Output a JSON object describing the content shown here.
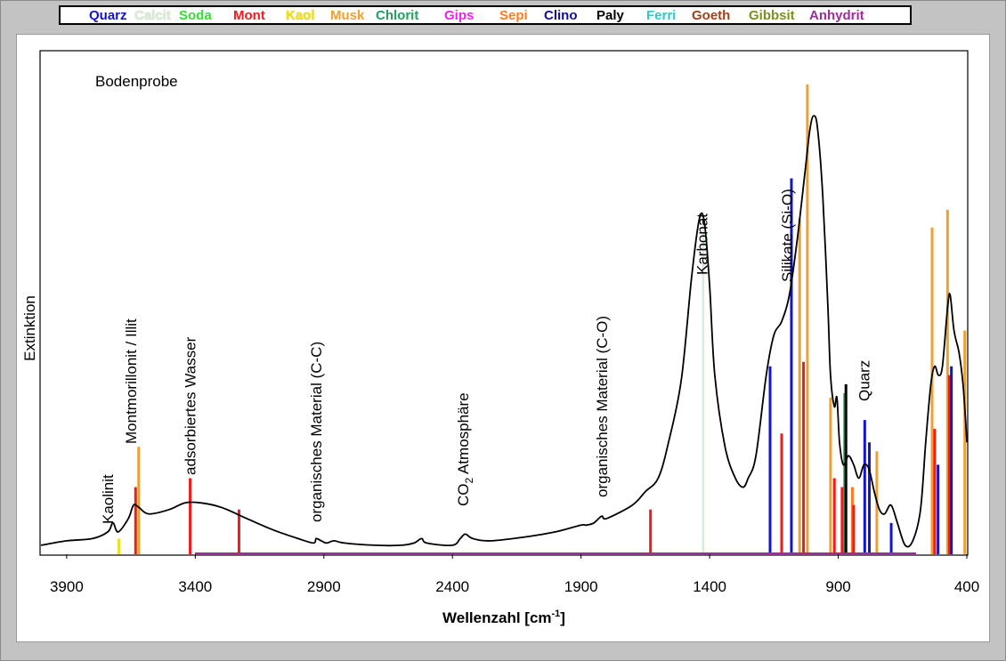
{
  "chart_data": {
    "type": "line",
    "title": "",
    "sample_label": "Bodenprobe",
    "xlabel": "Wellenzahl [cm",
    "xlabel_sup": "-1",
    "xlabel_end": "]",
    "ylabel": "Extinktion",
    "xlim": [
      4000,
      400
    ],
    "x_reversed": true,
    "x_ticks": [
      3900,
      3400,
      2900,
      2400,
      1900,
      1400,
      900,
      400
    ],
    "legend_position": "top",
    "legend": [
      {
        "name": "Quarz",
        "color": "#1515c8"
      },
      {
        "name": "Calcit",
        "color": "#d8ecd8"
      },
      {
        "name": "Soda",
        "color": "#33dd33"
      },
      {
        "name": "Mont",
        "color": "#ee1c1c"
      },
      {
        "name": "Kaol",
        "color": "#f0e020"
      },
      {
        "name": "Musk",
        "color": "#f0a030"
      },
      {
        "name": "Chlorit",
        "color": "#22a060"
      },
      {
        "name": "Gips",
        "color": "#ee22ee"
      },
      {
        "name": "Sepi",
        "color": "#ff7a20"
      },
      {
        "name": "Clino",
        "color": "#101090"
      },
      {
        "name": "Paly",
        "color": "#000000"
      },
      {
        "name": "Ferri",
        "color": "#30c8c8"
      },
      {
        "name": "Goeth",
        "color": "#a04018"
      },
      {
        "name": "Gibbsit",
        "color": "#80901c"
      },
      {
        "name": "Anhydrit",
        "color": "#a02c9c"
      }
    ],
    "spectrum": [
      [
        4000,
        0.02
      ],
      [
        3900,
        0.03
      ],
      [
        3800,
        0.035
      ],
      [
        3740,
        0.05
      ],
      [
        3720,
        0.07
      ],
      [
        3700,
        0.05
      ],
      [
        3660,
        0.08
      ],
      [
        3640,
        0.11
      ],
      [
        3620,
        0.105
      ],
      [
        3580,
        0.09
      ],
      [
        3500,
        0.1
      ],
      [
        3440,
        0.115
      ],
      [
        3380,
        0.115
      ],
      [
        3300,
        0.105
      ],
      [
        3200,
        0.08
      ],
      [
        3100,
        0.055
      ],
      [
        3000,
        0.035
      ],
      [
        2940,
        0.025
      ],
      [
        2930,
        0.035
      ],
      [
        2910,
        0.03
      ],
      [
        2890,
        0.025
      ],
      [
        2860,
        0.03
      ],
      [
        2820,
        0.025
      ],
      [
        2700,
        0.02
      ],
      [
        2600,
        0.02
      ],
      [
        2550,
        0.025
      ],
      [
        2520,
        0.035
      ],
      [
        2500,
        0.025
      ],
      [
        2400,
        0.02
      ],
      [
        2370,
        0.035
      ],
      [
        2350,
        0.045
      ],
      [
        2320,
        0.035
      ],
      [
        2250,
        0.03
      ],
      [
        2100,
        0.04
      ],
      [
        2000,
        0.05
      ],
      [
        1900,
        0.065
      ],
      [
        1880,
        0.065
      ],
      [
        1850,
        0.07
      ],
      [
        1820,
        0.085
      ],
      [
        1800,
        0.08
      ],
      [
        1700,
        0.11
      ],
      [
        1650,
        0.14
      ],
      [
        1600,
        0.17
      ],
      [
        1560,
        0.25
      ],
      [
        1510,
        0.39
      ],
      [
        1470,
        0.62
      ],
      [
        1440,
        0.75
      ],
      [
        1420,
        0.74
      ],
      [
        1400,
        0.6
      ],
      [
        1380,
        0.4
      ],
      [
        1340,
        0.24
      ],
      [
        1300,
        0.17
      ],
      [
        1270,
        0.15
      ],
      [
        1250,
        0.17
      ],
      [
        1220,
        0.22
      ],
      [
        1180,
        0.4
      ],
      [
        1150,
        0.49
      ],
      [
        1120,
        0.52
      ],
      [
        1090,
        0.58
      ],
      [
        1060,
        0.7
      ],
      [
        1030,
        0.85
      ],
      [
        1010,
        0.95
      ],
      [
        995,
        0.98
      ],
      [
        980,
        0.95
      ],
      [
        960,
        0.8
      ],
      [
        940,
        0.55
      ],
      [
        930,
        0.4
      ],
      [
        915,
        0.33
      ],
      [
        905,
        0.35
      ],
      [
        895,
        0.25
      ],
      [
        880,
        0.2
      ],
      [
        860,
        0.22
      ],
      [
        840,
        0.2
      ],
      [
        820,
        0.17
      ],
      [
        800,
        0.2
      ],
      [
        780,
        0.19
      ],
      [
        760,
        0.14
      ],
      [
        740,
        0.1
      ],
      [
        720,
        0.09
      ],
      [
        695,
        0.11
      ],
      [
        670,
        0.07
      ],
      [
        640,
        0.02
      ],
      [
        610,
        0.03
      ],
      [
        580,
        0.1
      ],
      [
        560,
        0.25
      ],
      [
        540,
        0.38
      ],
      [
        525,
        0.42
      ],
      [
        510,
        0.4
      ],
      [
        495,
        0.42
      ],
      [
        475,
        0.55
      ],
      [
        465,
        0.58
      ],
      [
        450,
        0.5
      ],
      [
        430,
        0.45
      ],
      [
        415,
        0.38
      ],
      [
        405,
        0.3
      ],
      [
        400,
        0.25
      ]
    ],
    "reference_lines": [
      {
        "mineral": "Kaol",
        "x": 3697,
        "h": 0.035
      },
      {
        "mineral": "Kaol",
        "x": 3620,
        "h": 0.08
      },
      {
        "mineral": "Mont",
        "x": 3632,
        "h": 0.15
      },
      {
        "mineral": "Musk",
        "x": 3620,
        "h": 0.24
      },
      {
        "mineral": "Mont",
        "x": 3420,
        "h": 0.17
      },
      {
        "mineral": "Mont",
        "x": 3230,
        "h": 0.1
      },
      {
        "mineral": "Mont",
        "x": 1630,
        "h": 0.1
      },
      {
        "mineral": "Calcit",
        "x": 1425,
        "h": 0.75
      },
      {
        "mineral": "Quarz",
        "x": 1165,
        "h": 0.42
      },
      {
        "mineral": "Mont",
        "x": 1120,
        "h": 0.27
      },
      {
        "mineral": "Quarz",
        "x": 1082,
        "h": 0.84
      },
      {
        "mineral": "Musk",
        "x": 1050,
        "h": 0.75
      },
      {
        "mineral": "Mont",
        "x": 1035,
        "h": 0.43
      },
      {
        "mineral": "Musk",
        "x": 1020,
        "h": 1.05
      },
      {
        "mineral": "Mont",
        "x": 915,
        "h": 0.17
      },
      {
        "mineral": "Musk",
        "x": 930,
        "h": 0.35
      },
      {
        "mineral": "Mont",
        "x": 885,
        "h": 0.15
      },
      {
        "mineral": "Chlorit",
        "x": 875,
        "h": 0.36
      },
      {
        "mineral": "Paly",
        "x": 870,
        "h": 0.38
      },
      {
        "mineral": "Sepi",
        "x": 845,
        "h": 0.15
      },
      {
        "mineral": "Mont",
        "x": 840,
        "h": 0.11
      },
      {
        "mineral": "Quarz",
        "x": 797,
        "h": 0.3
      },
      {
        "mineral": "Quarz",
        "x": 779,
        "h": 0.25
      },
      {
        "mineral": "Musk",
        "x": 750,
        "h": 0.23
      },
      {
        "mineral": "Quarz",
        "x": 694,
        "h": 0.07
      },
      {
        "mineral": "Musk",
        "x": 535,
        "h": 0.73
      },
      {
        "mineral": "Mont",
        "x": 525,
        "h": 0.28
      },
      {
        "mineral": "Quarz",
        "x": 512,
        "h": 0.2
      },
      {
        "mineral": "Musk",
        "x": 475,
        "h": 0.77
      },
      {
        "mineral": "Mont",
        "x": 468,
        "h": 0.4
      },
      {
        "mineral": "Quarz",
        "x": 460,
        "h": 0.42
      },
      {
        "mineral": "Musk",
        "x": 408,
        "h": 0.5
      }
    ],
    "annotations": [
      {
        "text": "Kaolinit",
        "x": 3740
      },
      {
        "text": "Montmorillonit / Illit",
        "x": 3650
      },
      {
        "text": "adsorbiertes Wasser",
        "x": 3420
      },
      {
        "text": "organisches Material (C-C)",
        "x": 2930
      },
      {
        "text": "CO",
        "sub": "2",
        "tail": " Atmosphäre",
        "x": 2360
      },
      {
        "text": "organisches Material (C-O)",
        "x": 1820
      },
      {
        "text": "Karbonat",
        "x": 1430
      },
      {
        "text": "Silikate (Si-O)",
        "x": 1100
      },
      {
        "text": "Quarz",
        "x": 800
      }
    ],
    "baseline_color": "#a02c9c"
  }
}
